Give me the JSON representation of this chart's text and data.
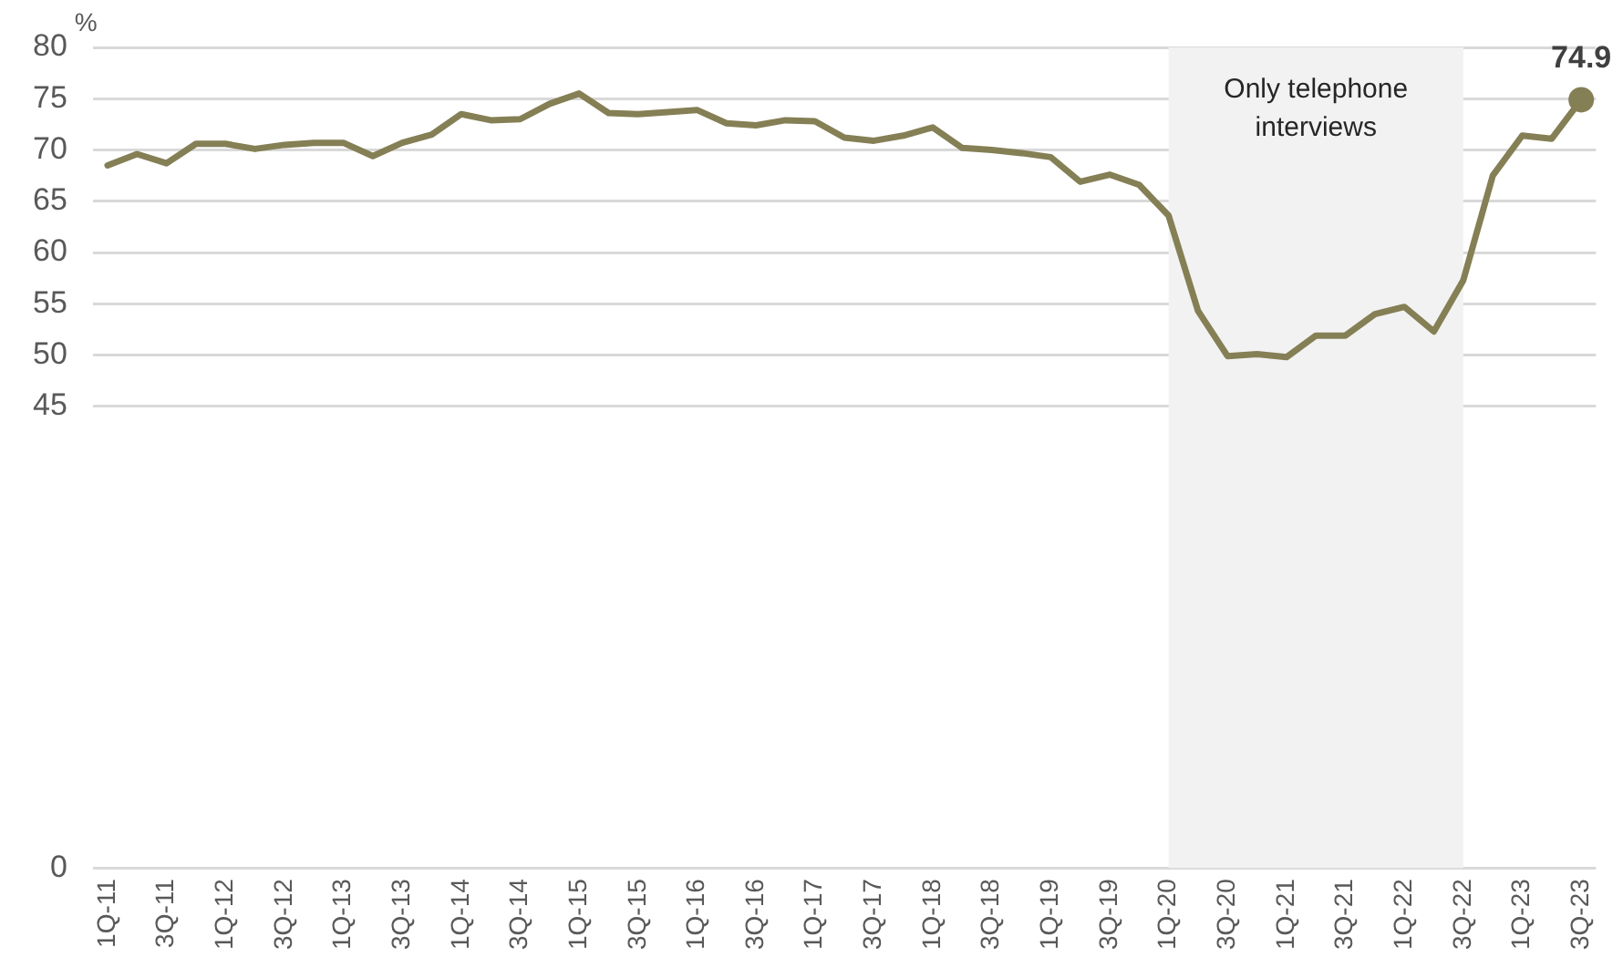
{
  "chart_data": {
    "type": "line",
    "ylabel": "%",
    "categories": [
      "1Q-11",
      null,
      "3Q-11",
      null,
      "1Q-12",
      null,
      "3Q-12",
      null,
      "1Q-13",
      null,
      "3Q-13",
      null,
      "1Q-14",
      null,
      "3Q-14",
      null,
      "1Q-15",
      null,
      "3Q-15",
      null,
      "1Q-16",
      null,
      "3Q-16",
      null,
      "1Q-17",
      null,
      "3Q-17",
      null,
      "1Q-18",
      null,
      "3Q-18",
      null,
      "1Q-19",
      null,
      "3Q-19",
      null,
      "1Q-20",
      null,
      "3Q-20",
      null,
      "1Q-21",
      null,
      "3Q-21",
      null,
      "1Q-22",
      null,
      "3Q-22",
      null,
      "1Q-23",
      null,
      "3Q-23"
    ],
    "series": [
      {
        "color": "#857f55",
        "values": [
          68.5,
          69.6,
          68.7,
          70.6,
          70.6,
          70.1,
          70.5,
          70.7,
          70.7,
          69.4,
          70.7,
          71.5,
          73.5,
          72.9,
          73.0,
          74.5,
          75.5,
          73.6,
          73.5,
          73.7,
          73.9,
          72.6,
          72.4,
          72.9,
          72.8,
          71.2,
          70.9,
          71.4,
          72.2,
          70.2,
          70.0,
          69.7,
          69.3,
          66.9,
          67.6,
          66.6,
          63.6,
          54.3,
          49.9,
          50.1,
          49.8,
          51.9,
          51.9,
          54.0,
          54.7,
          52.3,
          57.3,
          67.5,
          71.4,
          71.1,
          74.9
        ]
      }
    ],
    "ylim": [
      0,
      80
    ],
    "yticks": [
      0,
      45,
      50,
      55,
      60,
      65,
      70,
      75,
      80
    ],
    "grid": "y",
    "legend": false,
    "marker": "none",
    "line_style": "solid",
    "bands": [
      {
        "axis": "x",
        "from": "1Q-20",
        "to": "3Q-22",
        "label": "Only telephone interviews",
        "color": "#f2f2f2"
      }
    ],
    "annotations": [
      {
        "text": "74.9",
        "x": "3Q-23",
        "y": 74.9
      }
    ]
  }
}
